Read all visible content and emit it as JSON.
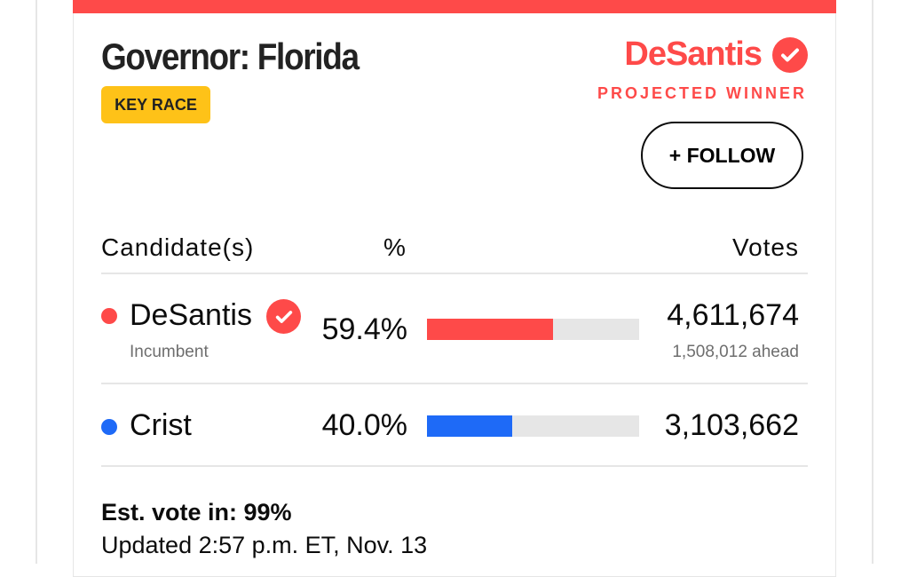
{
  "race": {
    "title": "Governor: Florida",
    "badge": "KEY RACE",
    "winner_name": "DeSantis",
    "winner_label": "PROJECTED WINNER",
    "follow_label": "+ FOLLOW",
    "accent": "#fe4a49"
  },
  "table": {
    "headers": {
      "candidate": "Candidate(s)",
      "percent": "%",
      "votes": "Votes"
    },
    "rows": [
      {
        "name": "DeSantis",
        "note": "Incumbent",
        "percent": "59.4%",
        "percent_value": 59.4,
        "votes": "4,611,674",
        "margin": "1,508,012 ahead",
        "color": "#fe4a49",
        "winner": true
      },
      {
        "name": "Crist",
        "percent": "40.0%",
        "percent_value": 40.0,
        "votes": "3,103,662",
        "color": "#1e6af7",
        "winner": false
      }
    ]
  },
  "footer": {
    "est": "Est. vote in: 99%",
    "updated": "Updated 2:57 p.m. ET, Nov. 13"
  }
}
